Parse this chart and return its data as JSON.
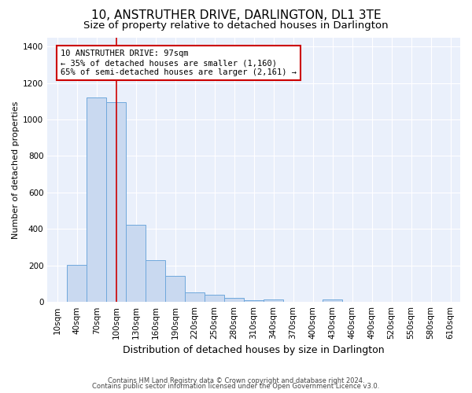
{
  "title": "10, ANSTRUTHER DRIVE, DARLINGTON, DL1 3TE",
  "subtitle": "Size of property relative to detached houses in Darlington",
  "xlabel": "Distribution of detached houses by size in Darlington",
  "ylabel": "Number of detached properties",
  "footnote1": "Contains HM Land Registry data © Crown copyright and database right 2024.",
  "footnote2": "Contains public sector information licensed under the Open Government Licence v3.0.",
  "annotation_line1": "10 ANSTRUTHER DRIVE: 97sqm",
  "annotation_line2": "← 35% of detached houses are smaller (1,160)",
  "annotation_line3": "65% of semi-detached houses are larger (2,161) →",
  "bin_labels": [
    "10sqm",
    "40sqm",
    "70sqm",
    "100sqm",
    "130sqm",
    "160sqm",
    "190sqm",
    "220sqm",
    "250sqm",
    "280sqm",
    "310sqm",
    "340sqm",
    "370sqm",
    "400sqm",
    "430sqm",
    "460sqm",
    "490sqm",
    "520sqm",
    "550sqm",
    "580sqm",
    "610sqm"
  ],
  "bar_values": [
    0,
    205,
    1120,
    1095,
    425,
    230,
    145,
    55,
    38,
    22,
    12,
    15,
    0,
    0,
    15,
    0,
    0,
    0,
    0,
    0,
    0
  ],
  "bar_color": "#c9d9f0",
  "bar_edge_color": "#6fa8dc",
  "vline_x": 3.0,
  "vline_color": "#cc0000",
  "ylim": [
    0,
    1450
  ],
  "yticks": [
    0,
    200,
    400,
    600,
    800,
    1000,
    1200,
    1400
  ],
  "bg_color": "#eaf0fb",
  "grid_color": "#ffffff",
  "title_fontsize": 11,
  "subtitle_fontsize": 9.5,
  "xlabel_fontsize": 9,
  "ylabel_fontsize": 8,
  "tick_fontsize": 7.5,
  "annotation_fontsize": 7.5,
  "footnote_fontsize": 6
}
